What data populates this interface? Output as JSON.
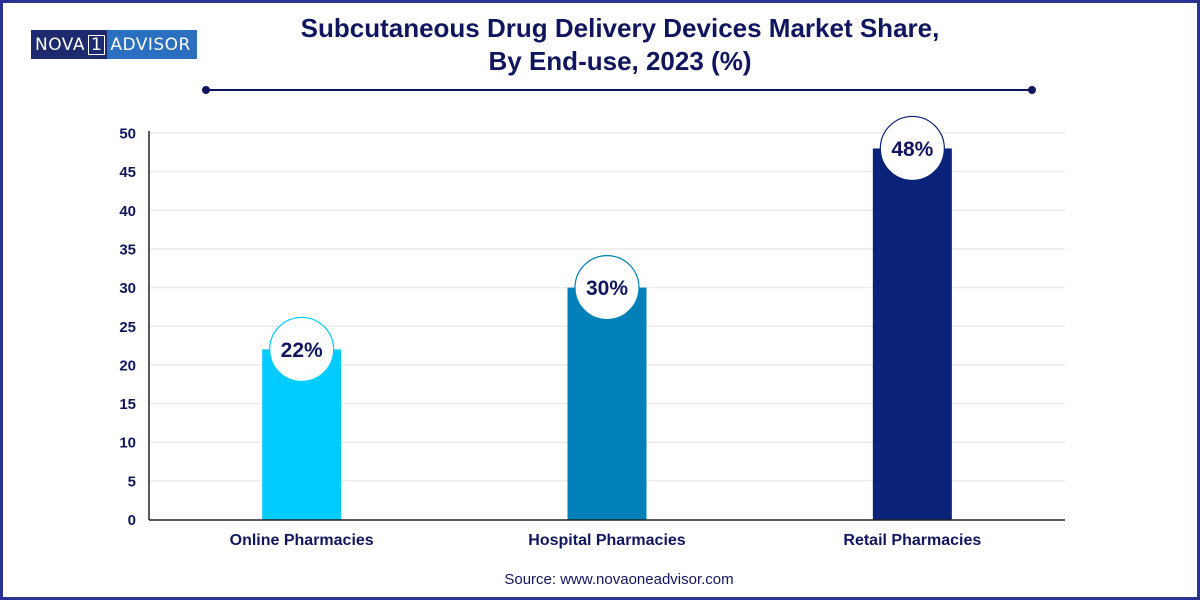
{
  "logo": {
    "part1": "NOVA",
    "part_box": "1",
    "part2": "ADVISOR"
  },
  "source": "Source: www.novaoneadvisor.com",
  "colors": {
    "frame": "#2a3390",
    "text": "#111560",
    "grid": "#ececec"
  },
  "chart_data": {
    "type": "bar",
    "title": "Subcutaneous Drug Delivery Devices Market Share, By End-use, 2023 (%)",
    "title_lines": [
      "Subcutaneous Drug Delivery Devices Market Share,",
      "By End-use, 2023 (%)"
    ],
    "xlabel": "",
    "ylabel": "",
    "categories": [
      "Online Pharmacies",
      "Hospital Pharmacies",
      "Retail Pharmacies"
    ],
    "values": [
      22,
      30,
      48
    ],
    "data_labels": [
      "22%",
      "30%",
      "48%"
    ],
    "bar_colors": [
      "#00ccff",
      "#0080b8",
      "#0a2278"
    ],
    "ylim": [
      0,
      50
    ],
    "yticks": [
      0,
      5,
      10,
      15,
      20,
      25,
      30,
      35,
      40,
      45,
      50
    ],
    "grid": true,
    "legend": "none"
  }
}
